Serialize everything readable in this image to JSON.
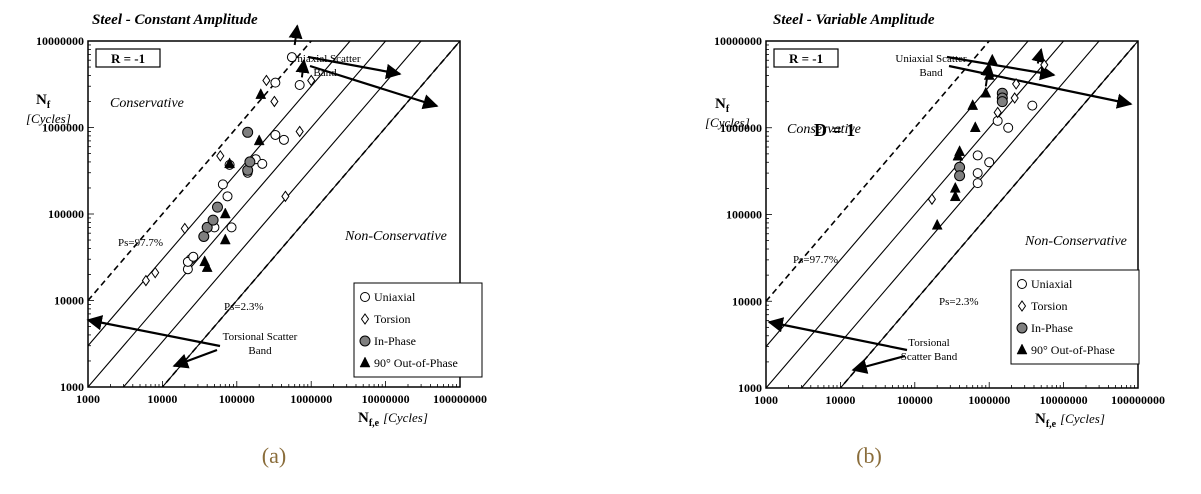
{
  "charts": [
    {
      "panel": "a",
      "title": "Steel - Constant Amplitude",
      "caption": "(a)",
      "chart_data": {
        "type": "scatter",
        "scale": "log-log",
        "xlim": [
          1000,
          100000000
        ],
        "ylim": [
          1000,
          10000000
        ],
        "x_ticks": [
          "1000",
          "10000",
          "100000",
          "1000000",
          "10000000",
          "100000000"
        ],
        "y_ticks": [
          "1000",
          "10000",
          "100000",
          "1000000",
          "10000000"
        ],
        "xlabel_main": "N",
        "xlabel_sub": "f,e",
        "xlabel_unit": "[Cycles]",
        "ylabel_main": "N",
        "ylabel_sub": "f",
        "ylabel_unit": "[Cycles]",
        "annotations": {
          "ratio_box": "R = -1",
          "conservative": "Conservative",
          "non_conservative": "Non-Conservative",
          "ps_upper": "Ps=97.7%",
          "ps_lower": "Ps=2.3%",
          "uniaxial_band": [
            "Uniaxial Scatter",
            "Band"
          ],
          "torsional_band": [
            "Torsional Scatter",
            "Band"
          ]
        },
        "reference_lines": [
          {
            "kind": "dashed",
            "factor": 10
          },
          {
            "kind": "solid",
            "factor": 3
          },
          {
            "kind": "solid",
            "factor": 1
          },
          {
            "kind": "solid",
            "factor": 0.3333
          },
          {
            "kind": "solid",
            "factor": 0.1
          },
          {
            "kind": "dashed",
            "factor": 0.1
          }
        ],
        "legend_position": "bottom-right",
        "series": [
          {
            "name": "Uniaxial",
            "marker": "circle-open",
            "points": [
              [
                22000,
                23000
              ],
              [
                24000,
                30000
              ],
              [
                22000,
                28000
              ],
              [
                26000,
                32000
              ],
              [
                50000,
                70000
              ],
              [
                65000,
                220000
              ],
              [
                75000,
                160000
              ],
              [
                80000,
                370000
              ],
              [
                85000,
                70000
              ],
              [
                140000,
                300000
              ],
              [
                180000,
                430000
              ],
              [
                220000,
                380000
              ],
              [
                330000,
                820000
              ],
              [
                330000,
                3300000
              ],
              [
                430000,
                720000
              ],
              [
                550000,
                6500000
              ],
              [
                700000,
                3100000
              ]
            ]
          },
          {
            "name": "Torsion",
            "marker": "diamond-open",
            "points": [
              [
                6000,
                17000
              ],
              [
                8000,
                21000
              ],
              [
                20000,
                68000
              ],
              [
                60000,
                470000
              ],
              [
                250000,
                3500000
              ],
              [
                320000,
                2000000
              ],
              [
                450000,
                160000
              ],
              [
                700000,
                900000
              ],
              [
                1000000,
                3500000
              ]
            ]
          },
          {
            "name": "In-Phase",
            "marker": "circle-gray",
            "points": [
              [
                36000,
                55000
              ],
              [
                40000,
                70000
              ],
              [
                48000,
                85000
              ],
              [
                55000,
                120000
              ],
              [
                140000,
                880000
              ],
              [
                140000,
                320000
              ],
              [
                150000,
                400000
              ]
            ]
          },
          {
            "name": "90° Out-of-Phase",
            "marker": "triangle-filled",
            "points": [
              [
                37000,
                28000
              ],
              [
                40000,
                24000
              ],
              [
                70000,
                50000
              ],
              [
                70000,
                100000
              ],
              [
                80000,
                380000
              ],
              [
                200000,
                700000
              ],
              [
                210000,
                2400000
              ]
            ]
          }
        ],
        "arrows": [
          {
            "from": [
              600000,
              9000000
            ],
            "to": [
              650000,
              15000000
            ]
          },
          {
            "from": [
              750000,
              3800000
            ],
            "to": [
              800000,
              6000000
            ]
          }
        ]
      }
    },
    {
      "panel": "b",
      "title": "Steel - Variable Amplitude",
      "caption": "(b)",
      "chart_data": {
        "type": "scatter",
        "scale": "log-log",
        "xlim": [
          1000,
          100000000
        ],
        "ylim": [
          1000,
          10000000
        ],
        "x_ticks": [
          "1000",
          "10000",
          "100000",
          "1000000",
          "10000000",
          "100000000"
        ],
        "y_ticks": [
          "1000",
          "10000",
          "100000",
          "1000000",
          "10000000"
        ],
        "xlabel_main": "N",
        "xlabel_sub": "f,e",
        "xlabel_unit": "[Cycles]",
        "ylabel_main": "N",
        "ylabel_sub": "f",
        "ylabel_unit": "[Cycles]",
        "annotations": {
          "ratio_box": "R = -1",
          "damage": "D = 1",
          "conservative": "Conservative",
          "non_conservative": "Non-Conservative",
          "ps_upper": "Ps=97.7%",
          "ps_lower": "Ps=2.3%",
          "uniaxial_band": [
            "Uniaxial Scatter",
            "Band"
          ],
          "torsional_band": [
            "Torsional",
            "Scatter Band"
          ]
        },
        "reference_lines": [
          {
            "kind": "dashed",
            "factor": 10
          },
          {
            "kind": "solid",
            "factor": 3
          },
          {
            "kind": "solid",
            "factor": 1
          },
          {
            "kind": "solid",
            "factor": 0.3333
          },
          {
            "kind": "solid",
            "factor": 0.1
          },
          {
            "kind": "dashed",
            "factor": 0.1
          }
        ],
        "legend_position": "bottom-right",
        "series": [
          {
            "name": "Uniaxial",
            "marker": "circle-open",
            "points": [
              [
                700000,
                230000
              ],
              [
                700000,
                300000
              ],
              [
                700000,
                480000
              ],
              [
                1000000,
                400000
              ],
              [
                1800000,
                1000000
              ],
              [
                3800000,
                1800000
              ],
              [
                1300000,
                1200000
              ]
            ]
          },
          {
            "name": "Torsion",
            "marker": "diamond-open",
            "points": [
              [
                170000,
                150000
              ],
              [
                1300000,
                1500000
              ],
              [
                2200000,
                2200000
              ],
              [
                2300000,
                3200000
              ],
              [
                5500000,
                5300000
              ]
            ]
          },
          {
            "name": "In-Phase",
            "marker": "circle-gray",
            "points": [
              [
                400000,
                350000
              ],
              [
                400000,
                280000
              ],
              [
                1500000,
                2500000
              ],
              [
                1500000,
                2200000
              ],
              [
                1500000,
                2000000
              ]
            ]
          },
          {
            "name": "90° Out-of-Phase",
            "marker": "triangle-filled",
            "points": [
              [
                200000,
                75000
              ],
              [
                350000,
                160000
              ],
              [
                350000,
                200000
              ],
              [
                380000,
                470000
              ],
              [
                400000,
                530000
              ],
              [
                600000,
                1800000
              ],
              [
                650000,
                1000000
              ],
              [
                900000,
                2500000
              ],
              [
                1000000,
                4000000
              ],
              [
                1100000,
                6000000
              ]
            ]
          }
        ],
        "arrows": [
          {
            "from": [
              900000,
              3000000
            ],
            "to": [
              1000000,
              5500000
            ]
          },
          {
            "from": [
              4500000,
              5500000
            ],
            "to": [
              5000000,
              8000000
            ]
          }
        ]
      }
    }
  ]
}
